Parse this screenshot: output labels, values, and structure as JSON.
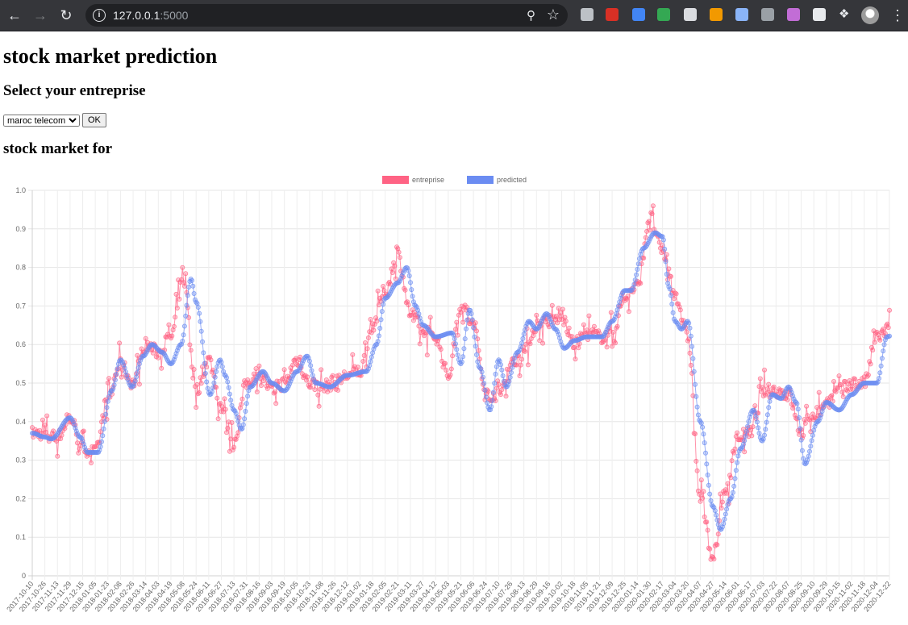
{
  "browser": {
    "url_host": "127.0.0.1",
    "url_port": ":5000",
    "extensions": [
      {
        "name": "tab-icon",
        "color": "#bdc1c6"
      },
      {
        "name": "hand-icon",
        "color": "#d93025"
      },
      {
        "name": "docs-icon",
        "color": "#4285f4"
      },
      {
        "name": "puzzle-color-icon",
        "color": "#34a853"
      },
      {
        "name": "bulb-icon",
        "color": "#dadce0"
      },
      {
        "name": "fox-icon",
        "color": "#f29900"
      },
      {
        "name": "disc-icon",
        "color": "#8ab4f8"
      },
      {
        "name": "facebook-icon",
        "color": "#9aa0a6"
      },
      {
        "name": "s-icon",
        "color": "#c26dd6"
      },
      {
        "name": "square-icon",
        "color": "#e8eaed"
      },
      {
        "name": "extensions-icon",
        "color": "#e8eaed"
      }
    ]
  },
  "page": {
    "title": "stock market prediction",
    "select_heading": "Select your entreprise",
    "selected_company": "maroc telecom",
    "ok_label": "OK",
    "chart_heading": "stock market for"
  },
  "chart_data": {
    "type": "line",
    "ylim": [
      0,
      1
    ],
    "yticks": [
      "1.0",
      "0.9",
      "0.8",
      "0.7",
      "0.6",
      "0.5",
      "0.4",
      "0.3",
      "0.2",
      "0.1",
      "0"
    ],
    "xtick_labels": [
      "2017-10-10",
      "2017-10-26",
      "2017-11-13",
      "2017-11-29",
      "2017-12-15",
      "2018-01-05",
      "2018-01-23",
      "2018-02-08",
      "2018-02-26",
      "2018-03-14",
      "2018-04-03",
      "2018-04-19",
      "2018-05-08",
      "2018-05-24",
      "2018-06-11",
      "2018-06-27",
      "2018-07-13",
      "2018-07-31",
      "2018-08-16",
      "2018-09-03",
      "2018-09-19",
      "2018-10-05",
      "2018-10-23",
      "2018-11-08",
      "2018-11-26",
      "2018-12-12",
      "2019-01-02",
      "2019-01-18",
      "2019-02-05",
      "2019-02-21",
      "2019-03-11",
      "2019-03-27",
      "2019-04-12",
      "2019-05-03",
      "2019-05-21",
      "2019-06-06",
      "2019-06-24",
      "2019-07-10",
      "2019-07-26",
      "2019-08-13",
      "2019-08-29",
      "2019-09-16",
      "2019-10-02",
      "2019-10-18",
      "2019-11-05",
      "2019-11-21",
      "2019-12-09",
      "2019-12-25",
      "2020-01-14",
      "2020-01-30",
      "2020-02-17",
      "2020-03-04",
      "2020-03-20",
      "2020-04-07",
      "2020-04-27",
      "2020-05-14",
      "2020-06-01",
      "2020-06-17",
      "2020-07-03",
      "2020-07-22",
      "2020-08-07",
      "2020-08-25",
      "2020-09-10",
      "2020-09-29",
      "2020-10-15",
      "2020-11-02",
      "2020-11-18",
      "2020-12-04",
      "2020-12-22"
    ],
    "legend_position": "top",
    "grid": true,
    "series": [
      {
        "name": "entreprise",
        "color": "#ff6384",
        "anchors": [
          [
            0,
            0.37
          ],
          [
            1,
            0.37
          ],
          [
            2,
            0.36
          ],
          [
            3,
            0.41
          ],
          [
            4,
            0.33
          ],
          [
            5,
            0.32
          ],
          [
            6,
            0.46
          ],
          [
            7,
            0.55
          ],
          [
            8,
            0.5
          ],
          [
            9,
            0.6
          ],
          [
            10,
            0.58
          ],
          [
            11,
            0.62
          ],
          [
            12,
            0.77
          ],
          [
            13,
            0.48
          ],
          [
            14,
            0.56
          ],
          [
            15,
            0.44
          ],
          [
            16,
            0.35
          ],
          [
            17,
            0.5
          ],
          [
            18,
            0.53
          ],
          [
            19,
            0.48
          ],
          [
            20,
            0.5
          ],
          [
            21,
            0.56
          ],
          [
            22,
            0.5
          ],
          [
            23,
            0.49
          ],
          [
            24,
            0.5
          ],
          [
            25,
            0.52
          ],
          [
            26,
            0.53
          ],
          [
            27,
            0.65
          ],
          [
            28,
            0.74
          ],
          [
            29,
            0.83
          ],
          [
            30,
            0.68
          ],
          [
            31,
            0.63
          ],
          [
            32,
            0.62
          ],
          [
            33,
            0.52
          ],
          [
            34,
            0.7
          ],
          [
            35,
            0.65
          ],
          [
            36,
            0.47
          ],
          [
            37,
            0.47
          ],
          [
            38,
            0.55
          ],
          [
            39,
            0.58
          ],
          [
            40,
            0.65
          ],
          [
            41,
            0.66
          ],
          [
            42,
            0.67
          ],
          [
            43,
            0.6
          ],
          [
            44,
            0.63
          ],
          [
            45,
            0.62
          ],
          [
            46,
            0.63
          ],
          [
            47,
            0.72
          ],
          [
            48,
            0.75
          ],
          [
            49,
            0.93
          ],
          [
            50,
            0.84
          ],
          [
            51,
            0.73
          ],
          [
            52,
            0.62
          ],
          [
            53,
            0.2
          ],
          [
            54,
            0.05
          ],
          [
            55,
            0.22
          ],
          [
            56,
            0.36
          ],
          [
            57,
            0.37
          ],
          [
            58,
            0.48
          ],
          [
            59,
            0.48
          ],
          [
            60,
            0.47
          ],
          [
            61,
            0.37
          ],
          [
            62,
            0.42
          ],
          [
            63,
            0.45
          ],
          [
            64,
            0.48
          ],
          [
            65,
            0.5
          ],
          [
            66,
            0.5
          ],
          [
            67,
            0.62
          ],
          [
            68,
            0.64
          ],
          [
            68.9,
            0.65
          ]
        ],
        "noise": 0.035
      },
      {
        "name": "predicted",
        "color": "#6b8cf2",
        "anchors": [
          [
            0,
            0.37
          ],
          [
            1,
            0.36
          ],
          [
            1.5,
            0.355
          ],
          [
            3,
            0.41
          ],
          [
            3.8,
            0.36
          ],
          [
            4.4,
            0.32
          ],
          [
            5.2,
            0.32
          ],
          [
            6.3,
            0.48
          ],
          [
            7,
            0.56
          ],
          [
            7.9,
            0.49
          ],
          [
            8.8,
            0.57
          ],
          [
            9.5,
            0.6
          ],
          [
            10.3,
            0.58
          ],
          [
            11,
            0.55
          ],
          [
            11.8,
            0.6
          ],
          [
            12.6,
            0.77
          ],
          [
            13,
            0.71
          ],
          [
            14.1,
            0.47
          ],
          [
            14.9,
            0.56
          ],
          [
            15.3,
            0.52
          ],
          [
            16,
            0.43
          ],
          [
            16.6,
            0.38
          ],
          [
            17.3,
            0.49
          ],
          [
            18.3,
            0.53
          ],
          [
            19,
            0.5
          ],
          [
            20,
            0.48
          ],
          [
            21,
            0.53
          ],
          [
            21.8,
            0.57
          ],
          [
            22.5,
            0.5
          ],
          [
            23.6,
            0.49
          ],
          [
            25,
            0.52
          ],
          [
            26.5,
            0.53
          ],
          [
            27.3,
            0.6
          ],
          [
            28,
            0.72
          ],
          [
            29,
            0.76
          ],
          [
            29.7,
            0.8
          ],
          [
            30.4,
            0.7
          ],
          [
            31,
            0.65
          ],
          [
            32,
            0.62
          ],
          [
            33.3,
            0.63
          ],
          [
            34,
            0.55
          ],
          [
            34.7,
            0.69
          ],
          [
            35.5,
            0.54
          ],
          [
            36.3,
            0.43
          ],
          [
            37,
            0.56
          ],
          [
            37.6,
            0.49
          ],
          [
            38.5,
            0.58
          ],
          [
            39.4,
            0.66
          ],
          [
            40,
            0.64
          ],
          [
            40.8,
            0.68
          ],
          [
            41.5,
            0.64
          ],
          [
            42.2,
            0.59
          ],
          [
            43,
            0.61
          ],
          [
            44,
            0.62
          ],
          [
            45.2,
            0.62
          ],
          [
            46,
            0.66
          ],
          [
            47,
            0.74
          ],
          [
            47.5,
            0.74
          ],
          [
            48.5,
            0.85
          ],
          [
            49.4,
            0.89
          ],
          [
            50,
            0.88
          ],
          [
            50.5,
            0.75
          ],
          [
            51,
            0.66
          ],
          [
            51.5,
            0.64
          ],
          [
            52,
            0.66
          ],
          [
            53,
            0.4
          ],
          [
            54,
            0.18
          ],
          [
            54.6,
            0.12
          ],
          [
            55.4,
            0.2
          ],
          [
            56.2,
            0.33
          ],
          [
            57.2,
            0.43
          ],
          [
            57.9,
            0.35
          ],
          [
            58.7,
            0.47
          ],
          [
            59.4,
            0.46
          ],
          [
            60,
            0.49
          ],
          [
            60.6,
            0.45
          ],
          [
            61.3,
            0.29
          ],
          [
            62.3,
            0.4
          ],
          [
            63,
            0.45
          ],
          [
            64,
            0.43
          ],
          [
            65,
            0.47
          ],
          [
            66,
            0.5
          ],
          [
            67,
            0.5
          ],
          [
            67.8,
            0.62
          ],
          [
            68.5,
            0.63
          ],
          [
            68.9,
            0.62
          ]
        ]
      }
    ]
  }
}
